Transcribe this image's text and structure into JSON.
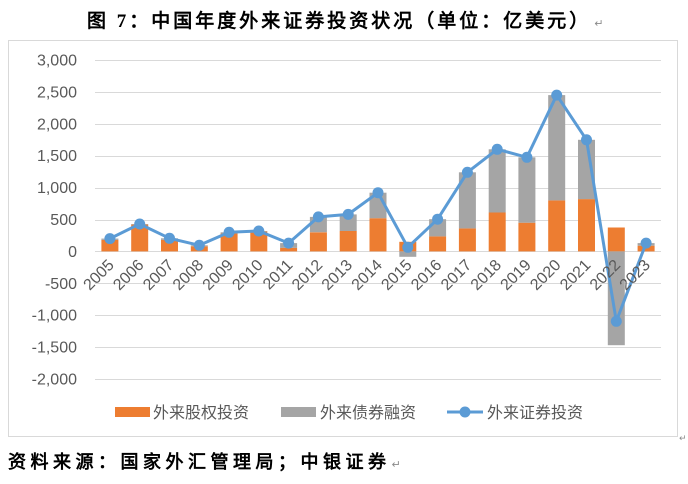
{
  "paragraph_mark": "↵",
  "source": "资料来源：国家外汇管理局；中银证券",
  "chart_data": {
    "type": "bar",
    "stacked": true,
    "title": "图 7：中国年度外来证券投资状况（单位：亿美元）",
    "categories": [
      "2005",
      "2006",
      "2007",
      "2008",
      "2009",
      "2010",
      "2011",
      "2012",
      "2013",
      "2014",
      "2015",
      "2016",
      "2017",
      "2018",
      "2019",
      "2020",
      "2021",
      "2022",
      "2023"
    ],
    "series": [
      {
        "name": "外来股权投资",
        "type": "bar",
        "color": "#ED7D31",
        "values": [
          180,
          420,
          180,
          80,
          280,
          310,
          55,
          300,
          320,
          520,
          150,
          235,
          360,
          610,
          450,
          800,
          820,
          375,
          90
        ]
      },
      {
        "name": "外来债券融资",
        "type": "bar",
        "color": "#A5A5A5",
        "values": [
          20,
          10,
          25,
          15,
          20,
          10,
          75,
          240,
          260,
          400,
          -85,
          270,
          880,
          990,
          1025,
          1650,
          930,
          -1470,
          40
        ]
      },
      {
        "name": "外来证券投资",
        "type": "line",
        "color": "#5B9BD5",
        "values": [
          200,
          430,
          205,
          95,
          300,
          320,
          130,
          540,
          580,
          920,
          65,
          505,
          1240,
          1600,
          1475,
          2450,
          1750,
          -1095,
          130
        ]
      }
    ],
    "ylim": [
      -2000,
      3000
    ],
    "y_ticks": [
      3000,
      2500,
      2000,
      1500,
      1000,
      500,
      0,
      -500,
      -1000,
      -1500,
      -2000
    ],
    "y_tick_labels": [
      "3,000",
      "2,500",
      "2,000",
      "1,500",
      "1,000",
      "500",
      "0",
      "-500",
      "-1,000",
      "-1,500",
      "-2,000"
    ],
    "grid": true,
    "legend": "bottom"
  }
}
